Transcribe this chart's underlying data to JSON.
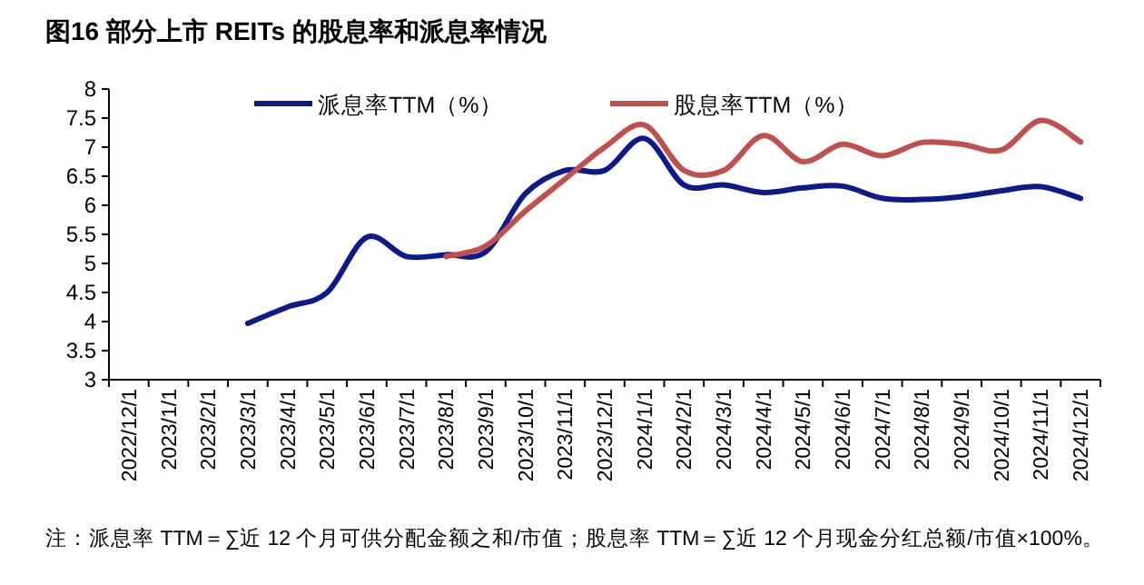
{
  "chart_data": {
    "type": "line",
    "title": "图16 部分上市 REITs 的股息率和派息率情况",
    "categories": [
      "2022/12/1",
      "2023/1/1",
      "2023/2/1",
      "2023/3/1",
      "2023/4/1",
      "2023/5/1",
      "2023/6/1",
      "2023/7/1",
      "2023/8/1",
      "2023/9/1",
      "2023/10/1",
      "2023/11/1",
      "2023/12/1",
      "2024/1/1",
      "2024/2/1",
      "2024/3/1",
      "2024/4/1",
      "2024/5/1",
      "2024/6/1",
      "2024/7/1",
      "2024/8/1",
      "2024/9/1",
      "2024/10/1",
      "2024/11/1",
      "2024/12/1"
    ],
    "series": [
      {
        "name": "派息率TTM（%）",
        "color": "#0b1a8c",
        "values": [
          null,
          null,
          null,
          3.97,
          4.25,
          4.5,
          5.45,
          5.12,
          5.15,
          5.2,
          6.2,
          6.6,
          6.6,
          7.15,
          6.35,
          6.35,
          6.22,
          6.3,
          6.33,
          6.12,
          6.1,
          6.15,
          6.25,
          6.32,
          6.12
        ]
      },
      {
        "name": "股息率TTM（%）",
        "color": "#c0504d",
        "values": [
          null,
          null,
          null,
          null,
          null,
          null,
          null,
          null,
          5.12,
          5.3,
          5.9,
          6.45,
          7.0,
          7.38,
          6.6,
          6.6,
          7.2,
          6.75,
          7.05,
          6.85,
          7.08,
          7.05,
          6.95,
          7.46,
          7.09
        ]
      }
    ],
    "ylim": [
      3,
      8
    ],
    "yticks": [
      3,
      3.5,
      4,
      4.5,
      5,
      5.5,
      6,
      6.5,
      7,
      7.5,
      8
    ],
    "grid": false,
    "legend": "top",
    "marker": "none",
    "line_style": "solid",
    "annotations": [
      "注：派息率 TTM＝∑近 12 个月可供分配金额之和/市值；股息率 TTM＝∑近 12 个月现金分红总额/市值×100%。"
    ]
  }
}
